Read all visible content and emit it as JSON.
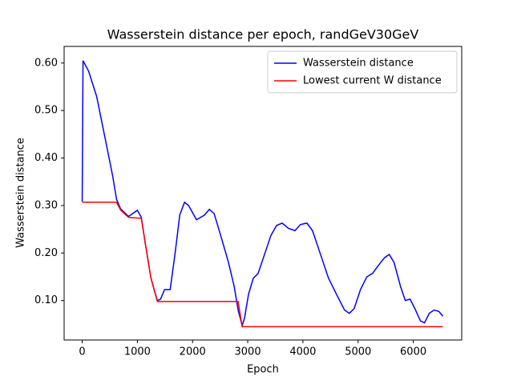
{
  "chart_data": {
    "type": "line",
    "title": "Wasserstein distance per epoch, randGeV30GeV",
    "x_label": "Epoch",
    "y_label": "Wasserstein distance",
    "xlim": [
      -327.5,
      6877.5
    ],
    "ylim": [
      0.0169,
      0.635
    ],
    "xticks": [
      0,
      1000,
      2000,
      3000,
      4000,
      5000,
      6000
    ],
    "yticks": [
      {
        "value": 0.1,
        "label": "0.10"
      },
      {
        "value": 0.2,
        "label": "0.20"
      },
      {
        "value": 0.3,
        "label": "0.30"
      },
      {
        "value": 0.4,
        "label": "0.40"
      },
      {
        "value": 0.5,
        "label": "0.50"
      },
      {
        "value": 0.6,
        "label": "0.60"
      }
    ],
    "legend": "upper right",
    "series": [
      {
        "name": "Wasserstein distance",
        "color": "#0000ff",
        "x": [
          0,
          15,
          116,
          261,
          406,
          551,
          623,
          696,
          841,
          913,
          1000,
          1072,
          1130,
          1246,
          1362,
          1420,
          1493,
          1594,
          1681,
          1768,
          1855,
          1928,
          2072,
          2217,
          2304,
          2391,
          2507,
          2652,
          2754,
          2826,
          2899,
          2942,
          3014,
          3101,
          3188,
          3304,
          3420,
          3522,
          3623,
          3739,
          3855,
          3957,
          4072,
          4174,
          4319,
          4464,
          4609,
          4754,
          4841,
          4928,
          5043,
          5159,
          5261,
          5362,
          5478,
          5565,
          5652,
          5768,
          5855,
          5942,
          6029,
          6130,
          6203,
          6290,
          6377,
          6464,
          6536
        ],
        "values": [
          0.308,
          0.605,
          0.583,
          0.53,
          0.447,
          0.363,
          0.313,
          0.293,
          0.277,
          0.283,
          0.29,
          0.275,
          0.23,
          0.147,
          0.1,
          0.103,
          0.123,
          0.123,
          0.197,
          0.28,
          0.307,
          0.3,
          0.27,
          0.28,
          0.292,
          0.283,
          0.238,
          0.18,
          0.13,
          0.08,
          0.047,
          0.063,
          0.113,
          0.147,
          0.157,
          0.197,
          0.237,
          0.258,
          0.263,
          0.252,
          0.247,
          0.26,
          0.263,
          0.247,
          0.197,
          0.147,
          0.113,
          0.08,
          0.073,
          0.083,
          0.123,
          0.15,
          0.157,
          0.173,
          0.19,
          0.197,
          0.18,
          0.13,
          0.1,
          0.103,
          0.083,
          0.057,
          0.053,
          0.073,
          0.08,
          0.077,
          0.067
        ]
      },
      {
        "name": "Lowest current W distance",
        "color": "#ff0000",
        "x": [
          0,
          620,
          700,
          841,
          1072,
          1130,
          1246,
          1362,
          2826,
          2899,
          6536
        ],
        "values": [
          0.307,
          0.307,
          0.29,
          0.275,
          0.273,
          0.23,
          0.147,
          0.098,
          0.098,
          0.045,
          0.045
        ]
      }
    ]
  }
}
